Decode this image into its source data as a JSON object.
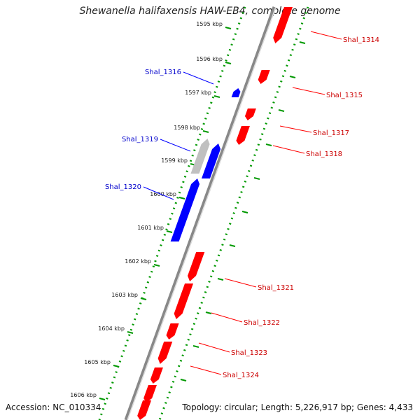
{
  "title": "Shewanella halifaxensis HAW-EB4, complete genome",
  "accession": "Accession: NC_010334",
  "topology": "Topology: circular; Length: 5,226,917 bp; Genes: 4,433",
  "colors": {
    "forward_gene": "#ff0000",
    "reverse_gene": "#0000ff",
    "pseudo_gene": "#c0c0c0",
    "backbone": "#888888",
    "tick_track": "#009900",
    "forward_label": "#cc0000",
    "reverse_label": "#0000cc"
  },
  "kbp_ticks": [
    "1595 kbp",
    "1596 kbp",
    "1597 kbp",
    "1598 kbp",
    "1599 kbp",
    "1600 kbp",
    "1601 kbp",
    "1602 kbp",
    "1603 kbp",
    "1604 kbp",
    "1605 kbp",
    "1606 kbp"
  ],
  "forward_genes": [
    "Shal_1314",
    "Shal_1315",
    "Shal_1317",
    "Shal_1318",
    "Shal_1321",
    "Shal_1322",
    "Shal_1323",
    "Shal_1324"
  ],
  "reverse_genes": [
    "Shal_1316",
    "Shal_1319",
    "Shal_1320"
  ]
}
